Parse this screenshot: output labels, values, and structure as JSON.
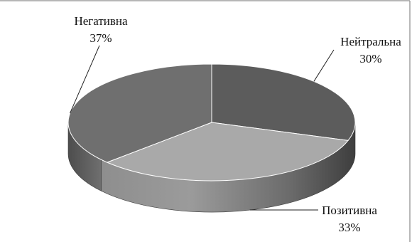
{
  "chart_data": {
    "type": "pie",
    "style": "3d-exploded-none",
    "title": "",
    "slices": [
      {
        "label": "Нейтральна",
        "value": 30,
        "value_label": "30%",
        "color": "#5c5c5c"
      },
      {
        "label": "Позитивна",
        "value": 33,
        "value_label": "33%",
        "color": "#a9a9a9"
      },
      {
        "label": "Негативна",
        "value": 37,
        "value_label": "37%",
        "color": "#6f6f6f"
      }
    ],
    "legend": "none",
    "data_labels": "outside with leader lines"
  },
  "colors": {
    "frame_border": "#8a8a8a",
    "leader_line": "#222222"
  }
}
